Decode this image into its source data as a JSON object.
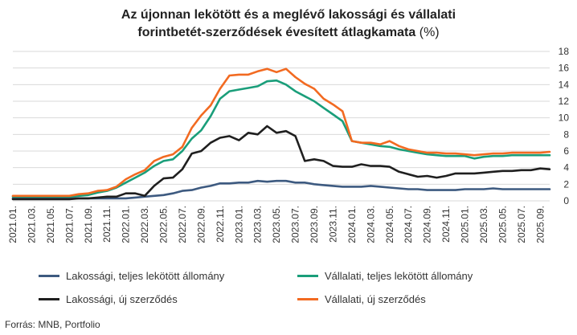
{
  "title_line1": "Az újonnan lekötött és a meglévő lakossági és vállalati",
  "title_line2_main": "forintbetét-szerződések évesített átlagkamata",
  "title_line2_unit": "(%)",
  "source": "Forrás: MNB, Portfolio",
  "colors": {
    "lakossagi_teljes": "#3d5a80",
    "vallalati_teljes": "#1a9e7a",
    "lakossagi_uj": "#1f1f1f",
    "vallalati_uj": "#f26a21",
    "grid": "#d9d9d9"
  },
  "chart_data": {
    "type": "line",
    "title": "Az újonnan lekötött és a meglévő lakossági és vállalati forintbetét-szerződések évesített átlagkamata (%)",
    "ylim": [
      0,
      18
    ],
    "yticks": [
      0,
      2,
      4,
      6,
      8,
      10,
      12,
      14,
      16,
      18
    ],
    "y_axis_position": "right",
    "grid": true,
    "legend_position": "bottom",
    "x_tick_labels": [
      "2021.01.",
      "2021.03.",
      "2021.05.",
      "2021.07.",
      "2021.09.",
      "2021.11.",
      "2022.01.",
      "2022.03.",
      "2022.05.",
      "2022.07.",
      "2022.09.",
      "2022.11.",
      "2023.01.",
      "2023.03.",
      "2023.05.",
      "2023.07.",
      "2023.09.",
      "2023.11.",
      "2024.01.",
      "2024.03.",
      "2024.05.",
      "2024.07.",
      "2024.09.",
      "2024.11.",
      "2025.01.",
      "2025.03.",
      "2025.05.",
      "2025.07.",
      "2025.09."
    ],
    "x_start": "2021.01.",
    "x_end": "2025.10.",
    "series": [
      {
        "name": "Lakossági, teljes lekötött állomány",
        "color_key": "lakossagi_teljes",
        "values": [
          0.3,
          0.3,
          0.3,
          0.3,
          0.3,
          0.3,
          0.3,
          0.3,
          0.3,
          0.3,
          0.3,
          0.3,
          0.3,
          0.4,
          0.5,
          0.6,
          0.7,
          0.9,
          1.2,
          1.3,
          1.6,
          1.8,
          2.1,
          2.1,
          2.2,
          2.2,
          2.4,
          2.3,
          2.4,
          2.4,
          2.2,
          2.2,
          2.0,
          1.9,
          1.8,
          1.7,
          1.7,
          1.7,
          1.8,
          1.7,
          1.6,
          1.5,
          1.4,
          1.4,
          1.3,
          1.3,
          1.3,
          1.3,
          1.4,
          1.4,
          1.4,
          1.5,
          1.4,
          1.4,
          1.4,
          1.4,
          1.4,
          1.4
        ]
      },
      {
        "name": "Vállalati, teljes lekötött állomány",
        "color_key": "vallalati_teljes",
        "values": [
          0.5,
          0.5,
          0.5,
          0.5,
          0.5,
          0.5,
          0.5,
          0.6,
          0.7,
          1.0,
          1.2,
          1.6,
          2.2,
          2.8,
          3.4,
          4.2,
          4.8,
          5.0,
          6.0,
          7.5,
          8.5,
          10.2,
          12.3,
          13.2,
          13.4,
          13.6,
          13.8,
          14.4,
          14.5,
          14.0,
          13.2,
          12.6,
          12.0,
          11.2,
          10.4,
          9.6,
          7.2,
          7.0,
          6.8,
          6.6,
          6.5,
          6.2,
          6.0,
          5.8,
          5.6,
          5.5,
          5.4,
          5.4,
          5.4,
          5.1,
          5.3,
          5.4,
          5.4,
          5.5,
          5.5,
          5.5,
          5.5,
          5.5
        ]
      },
      {
        "name": "Lakossági, új szerződés",
        "color_key": "lakossagi_uj",
        "values": [
          0.2,
          0.2,
          0.2,
          0.2,
          0.2,
          0.2,
          0.2,
          0.3,
          0.3,
          0.4,
          0.5,
          0.5,
          0.9,
          0.9,
          0.6,
          1.8,
          2.7,
          2.8,
          3.8,
          5.7,
          6.0,
          7.0,
          7.6,
          7.8,
          7.3,
          8.2,
          8.0,
          9.0,
          8.2,
          8.4,
          7.8,
          4.8,
          5.0,
          4.8,
          4.2,
          4.1,
          4.1,
          4.4,
          4.2,
          4.2,
          4.1,
          3.5,
          3.2,
          2.9,
          3.0,
          2.8,
          3.0,
          3.3,
          3.3,
          3.3,
          3.4,
          3.5,
          3.6,
          3.6,
          3.7,
          3.7,
          3.9,
          3.8
        ]
      },
      {
        "name": "Vállalati, új szerződés",
        "color_key": "vallalati_uj",
        "values": [
          0.6,
          0.6,
          0.6,
          0.6,
          0.6,
          0.6,
          0.6,
          0.8,
          0.9,
          1.2,
          1.3,
          1.7,
          2.6,
          3.2,
          3.7,
          4.8,
          5.3,
          5.6,
          6.5,
          8.8,
          10.3,
          11.5,
          13.5,
          15.1,
          15.2,
          15.2,
          15.6,
          15.9,
          15.5,
          15.9,
          14.9,
          14.1,
          13.5,
          12.3,
          11.6,
          10.8,
          7.2,
          7.0,
          7.0,
          6.8,
          7.2,
          6.6,
          6.2,
          6.0,
          5.8,
          5.8,
          5.7,
          5.7,
          5.6,
          5.5,
          5.6,
          5.7,
          5.7,
          5.8,
          5.8,
          5.8,
          5.8,
          5.9
        ]
      }
    ]
  }
}
